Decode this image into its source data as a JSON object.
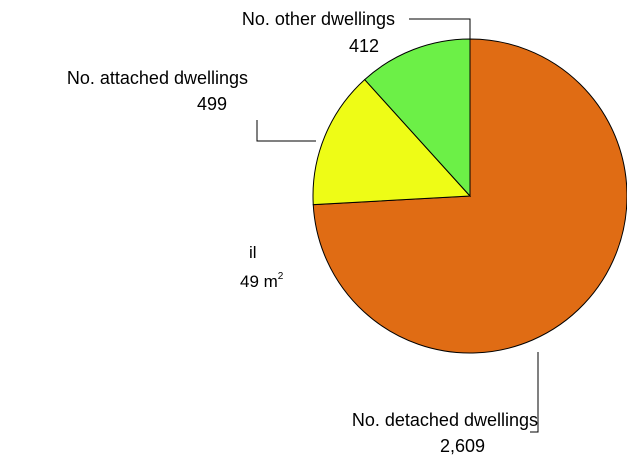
{
  "chart_data": {
    "type": "pie",
    "title": "",
    "start_angle_deg": 90,
    "direction": "clockwise",
    "colors": {
      "outline": "#000000",
      "leader": "#000000"
    },
    "slices": [
      {
        "label": "No. detached dwellings",
        "value": 2609,
        "value_label": "2,609",
        "color": "#e06c14"
      },
      {
        "label": "No. attached dwellings",
        "value": 499,
        "value_label": "499",
        "color": "#eefc16"
      },
      {
        "label": "No. other dwellings",
        "value": 412,
        "value_label": "412",
        "color": "#6cf047"
      }
    ]
  },
  "fragment": {
    "line1": "il",
    "line2_value": "49 m",
    "line2_sup": "2"
  }
}
